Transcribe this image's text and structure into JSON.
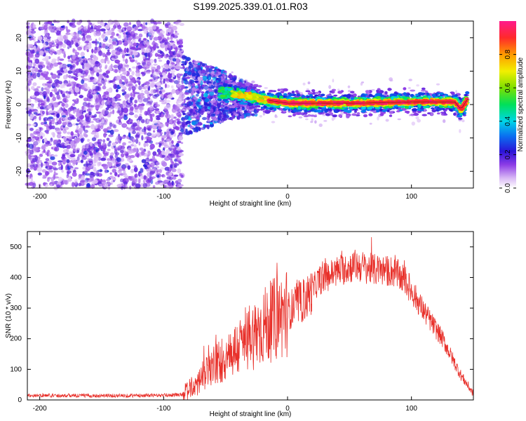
{
  "title": "S199.2025.339.01.01.R03",
  "chart_data": [
    {
      "type": "heatmap",
      "name": "spectrogram",
      "xlabel": "Height of straight line (km)",
      "ylabel": "Frequency (Hz)",
      "xlim": [
        -210,
        150
      ],
      "ylim": [
        -25,
        25
      ],
      "xticks": [
        -200,
        -100,
        0,
        100
      ],
      "yticks": [
        -20,
        -10,
        0,
        10,
        20
      ],
      "colorbar": {
        "label": "Normalized spectral amplitude",
        "range": [
          0,
          1
        ],
        "ticks": [
          0.0,
          0.2,
          0.4,
          0.6,
          0.8
        ],
        "tick_labels": [
          "0.0",
          "0.2",
          "0.4",
          "0.6",
          "0.8"
        ]
      },
      "regions": [
        {
          "x_range": [
            -210,
            -85
          ],
          "description": "broadband noise",
          "amplitude": [
            0.1,
            0.45
          ]
        },
        {
          "x_range": [
            -85,
            -25
          ],
          "description": "onset, broad",
          "amplitude": [
            0.3,
            0.7
          ]
        },
        {
          "x_range": [
            -25,
            145
          ],
          "description": "narrow carrier near 0-1 Hz",
          "amplitude": [
            0.85,
            1.0
          ]
        }
      ],
      "carrier_frequency": [
        {
          "x": -50,
          "y": 3.5
        },
        {
          "x": -30,
          "y": 2.5
        },
        {
          "x": -20,
          "y": 1.5
        },
        {
          "x": 0,
          "y": 0.4
        },
        {
          "x": 60,
          "y": 0.4
        },
        {
          "x": 100,
          "y": 0.8
        },
        {
          "x": 135,
          "y": 0.8
        },
        {
          "x": 140,
          "y": -1.5
        },
        {
          "x": 145,
          "y": 1.5
        }
      ]
    },
    {
      "type": "line",
      "name": "snr",
      "xlabel": "Height of straight line (km)",
      "ylabel": "SNR (10 * v/v)",
      "xlim": [
        -210,
        150
      ],
      "ylim": [
        0,
        550
      ],
      "xticks": [
        -200,
        -100,
        0,
        100
      ],
      "yticks": [
        0,
        100,
        200,
        300,
        400,
        500
      ],
      "color": "#e8302a",
      "envelope": {
        "x": [
          -210,
          -150,
          -100,
          -85,
          -75,
          -60,
          -40,
          -20,
          0,
          15,
          25,
          40,
          55,
          70,
          85,
          95,
          110,
          125,
          140,
          150
        ],
        "y": [
          15,
          14,
          15,
          18,
          45,
          110,
          170,
          240,
          290,
          330,
          390,
          420,
          440,
          425,
          420,
          390,
          290,
          200,
          80,
          20
        ]
      }
    }
  ]
}
